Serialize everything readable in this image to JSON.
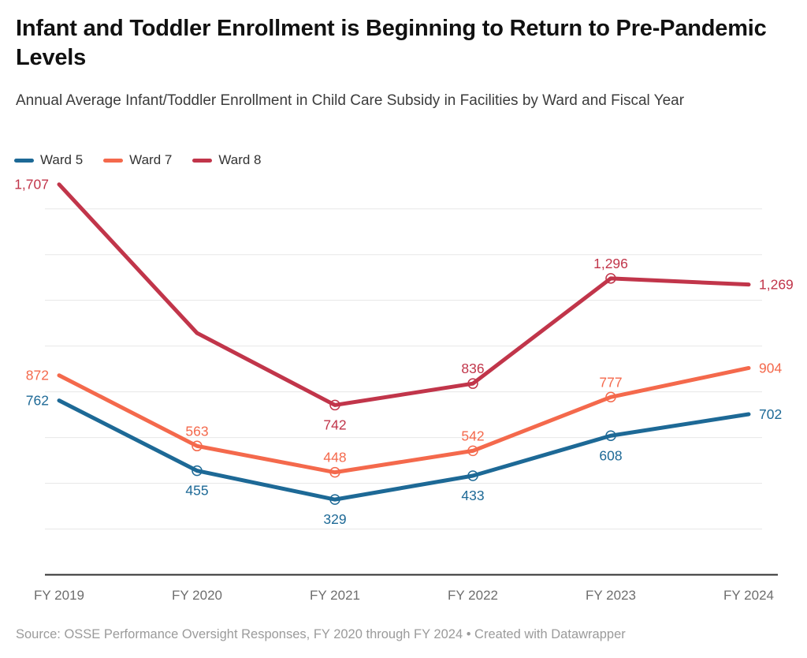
{
  "header": {
    "title": "Infant and Toddler Enrollment is Beginning to Return to Pre-Pandemic Levels",
    "subtitle": "Annual Average Infant/Toddler Enrollment in Child Care Subsidy in Facilities by Ward and Fiscal Year"
  },
  "footer": {
    "text": "Source: OSSE Performance Oversight Responses, FY 2020 through FY 2024 • Created with Datawrapper"
  },
  "colors": {
    "ward5": "#1d6996",
    "ward7": "#f4694c",
    "ward8": "#c1354a",
    "gridline": "#e7e7e7",
    "axis_line": "#2f2f2f",
    "tick_label": "#6e6e6e"
  },
  "chart_data": {
    "type": "line",
    "title": "Infant and Toddler Enrollment is Beginning to Return to Pre-Pandemic Levels",
    "subtitle": "Annual Average Infant/Toddler Enrollment in Child Care Subsidy in Facilities by Ward and Fiscal Year",
    "x": [
      "FY 2019",
      "FY 2020",
      "FY 2021",
      "FY 2022",
      "FY 2023",
      "FY 2024"
    ],
    "xlabel": "",
    "ylabel": "",
    "ylim": [
      0,
      1725
    ],
    "y_gridline_step": 200,
    "grid": "horizontal",
    "y_tick_labels_shown": false,
    "legend_position": "top-left",
    "series": [
      {
        "name": "Ward 5",
        "color": "#1d6996",
        "values": [
          762,
          455,
          329,
          433,
          608,
          702
        ],
        "labels": [
          "762",
          "455",
          "329",
          "433",
          "608",
          "702"
        ],
        "label_placement": [
          "left",
          "below",
          "below",
          "below",
          "below",
          "right"
        ],
        "markers": [
          false,
          true,
          true,
          true,
          true,
          false
        ]
      },
      {
        "name": "Ward 7",
        "color": "#f4694c",
        "values": [
          872,
          563,
          448,
          542,
          777,
          904
        ],
        "labels": [
          "872",
          "563",
          "448",
          "542",
          "777",
          "904"
        ],
        "label_placement": [
          "left",
          "above",
          "above",
          "above",
          "above",
          "right"
        ],
        "markers": [
          false,
          true,
          true,
          true,
          true,
          false
        ]
      },
      {
        "name": "Ward 8",
        "color": "#c1354a",
        "values": [
          1707,
          1057,
          742,
          836,
          1296,
          1269
        ],
        "labels": [
          "1,707",
          "",
          "742",
          "836",
          "1,296",
          "1,269"
        ],
        "label_placement": [
          "left",
          "none",
          "below",
          "above",
          "above",
          "right"
        ],
        "markers": [
          false,
          false,
          true,
          true,
          true,
          false
        ]
      }
    ],
    "annotations": {
      "ward8_fy2020": "point drawn but unlabeled in chart; value ~1057 estimated from line position"
    }
  }
}
